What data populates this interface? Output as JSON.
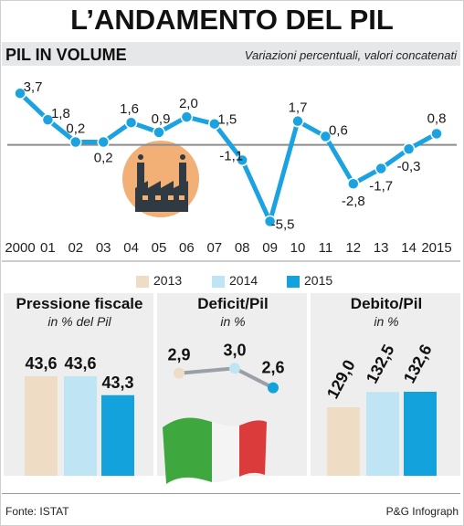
{
  "title": "L’ANDAMENTO DEL PIL",
  "line_section": {
    "title": "PIL IN VOLUME",
    "subtitle": "Variazioni percentuali, valori concatenati"
  },
  "chart_data": [
    {
      "type": "line",
      "title": "PIL IN VOLUME",
      "subtitle": "Variazioni percentuali, valori concatenati",
      "x": [
        "2000",
        "01",
        "02",
        "03",
        "04",
        "05",
        "06",
        "07",
        "08",
        "09",
        "10",
        "11",
        "12",
        "13",
        "14",
        "2015"
      ],
      "values": [
        3.7,
        1.8,
        0.2,
        0.2,
        1.6,
        0.9,
        2.0,
        1.5,
        -1.1,
        -5.5,
        1.7,
        0.6,
        -2.8,
        -1.7,
        -0.3,
        0.8
      ],
      "labels": [
        "3,7",
        "1,8",
        "0,2",
        "0,2",
        "1,6",
        "0,9",
        "2,0",
        "1,5",
        "-1,1",
        "-5,5",
        "1,7",
        "0,6",
        "-2,8",
        "-1,7",
        "-0,3",
        "0,8"
      ],
      "ylim": [
        -6,
        4.5
      ],
      "grid": false,
      "color": "#1aa3e0"
    },
    {
      "type": "bar",
      "title": "Pressione fiscale",
      "subtitle": "in % del Pil",
      "categories": [
        "2013",
        "2014",
        "2015"
      ],
      "values": [
        43.6,
        43.6,
        43.3
      ],
      "labels": [
        "43,6",
        "43,6",
        "43,3"
      ]
    },
    {
      "type": "line",
      "title": "Deficit/Pil",
      "subtitle": "in %",
      "x": [
        "2013",
        "2014",
        "2015"
      ],
      "values": [
        2.9,
        3.0,
        2.6
      ],
      "labels": [
        "2,9",
        "3,0",
        "2,6"
      ]
    },
    {
      "type": "bar",
      "title": "Debito/Pil",
      "subtitle": "in %",
      "categories": [
        "2013",
        "2014",
        "2015"
      ],
      "values": [
        129.0,
        132.5,
        132.6
      ],
      "labels": [
        "129,0",
        "132,5",
        "132,6"
      ]
    }
  ],
  "legend": [
    {
      "label": "2013",
      "color": "#efdcc5"
    },
    {
      "label": "2014",
      "color": "#bfe4f3"
    },
    {
      "label": "2015",
      "color": "#14a2dd"
    }
  ],
  "colors": {
    "line": "#1aa3e0",
    "zero_line": "#8c8c8c",
    "icon_circle": "#f2b077",
    "icon_factory": "#2f3a42",
    "flag_green": "#3ea83e",
    "flag_white": "#f4f4f4",
    "flag_red": "#dc3b3b",
    "deficit_line": "#9aa0a6"
  },
  "icons": {
    "factory": "factory-icon",
    "flag": "italy-flag-icon"
  },
  "footer": {
    "source": "Fonte: ISTAT",
    "credit": "P&G Infograph"
  }
}
